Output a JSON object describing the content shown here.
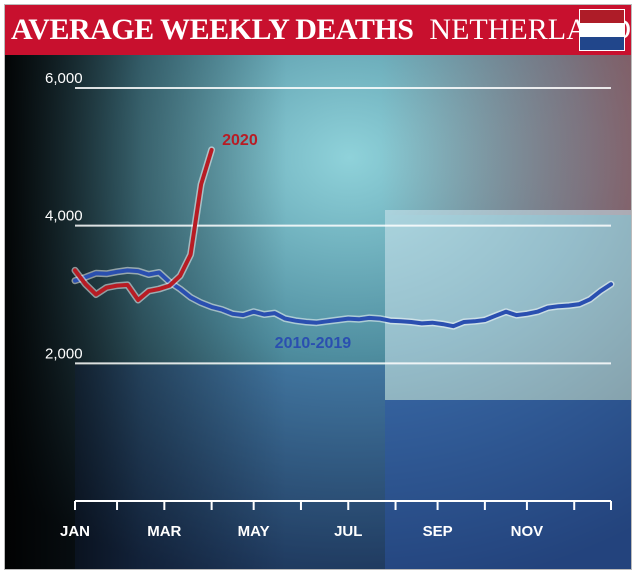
{
  "header": {
    "title": "AVERAGE WEEKLY DEATHS",
    "subtitle": "NETHERLANDS",
    "flag_colors": [
      "#ae1c28",
      "#ffffff",
      "#21468b"
    ]
  },
  "colors": {
    "series_2020": "#b81c24",
    "series_avg": "#2a4fb0",
    "header_bg": "#c8102e"
  },
  "chart_data": {
    "type": "line",
    "title": "AVERAGE WEEKLY DEATHS",
    "subtitle": "NETHERLANDS",
    "xlabel": "",
    "ylabel": "",
    "ylim": [
      0,
      6000
    ],
    "xlim": [
      1,
      52
    ],
    "yticks": [
      {
        "value": 2000,
        "label": "2,000"
      },
      {
        "value": 4000,
        "label": "4,000"
      },
      {
        "value": 6000,
        "label": "6,000"
      }
    ],
    "xticks": [
      {
        "week": 1,
        "label": "JAN"
      },
      {
        "week": 9.5,
        "label": "MAR"
      },
      {
        "week": 18,
        "label": "MAY"
      },
      {
        "week": 27,
        "label": "JUL"
      },
      {
        "week": 35.5,
        "label": "SEP"
      },
      {
        "week": 44,
        "label": "NOV"
      }
    ],
    "minor_ticks": [
      1,
      5,
      9.5,
      14,
      18,
      22.5,
      27,
      31.5,
      35.5,
      40,
      44,
      48.5,
      52
    ],
    "grid": true,
    "series": [
      {
        "name": "2010-2019",
        "label": "2010-2019",
        "x": [
          1,
          2,
          3,
          4,
          5,
          6,
          7,
          8,
          9,
          10,
          11,
          12,
          13,
          14,
          15,
          16,
          17,
          18,
          19,
          20,
          21,
          22,
          23,
          24,
          25,
          26,
          27,
          28,
          29,
          30,
          31,
          32,
          33,
          34,
          35,
          36,
          37,
          38,
          39,
          40,
          41,
          42,
          43,
          44,
          45,
          46,
          47,
          48,
          49,
          50,
          51,
          52
        ],
        "values": [
          3200,
          3250,
          3310,
          3300,
          3330,
          3350,
          3340,
          3290,
          3320,
          3180,
          3080,
          2960,
          2880,
          2820,
          2780,
          2720,
          2700,
          2750,
          2710,
          2730,
          2650,
          2620,
          2600,
          2590,
          2610,
          2630,
          2650,
          2640,
          2660,
          2650,
          2620,
          2610,
          2600,
          2580,
          2590,
          2570,
          2540,
          2600,
          2610,
          2630,
          2690,
          2750,
          2700,
          2720,
          2750,
          2810,
          2830,
          2840,
          2860,
          2930,
          3050,
          3150
        ]
      },
      {
        "name": "2020",
        "label": "2020",
        "x": [
          1,
          2,
          3,
          4,
          5,
          6,
          7,
          8,
          9,
          10,
          11,
          12,
          13,
          14
        ],
        "values": [
          3350,
          3150,
          3000,
          3100,
          3130,
          3140,
          2920,
          3050,
          3080,
          3130,
          3270,
          3580,
          4600,
          5100
        ]
      }
    ],
    "annotations": [
      {
        "text": "2020",
        "x": 15,
        "y": 5170,
        "series": "2020"
      },
      {
        "text": "2010-2019",
        "x": 20,
        "y": 2220,
        "series": "2010-2019"
      }
    ]
  }
}
